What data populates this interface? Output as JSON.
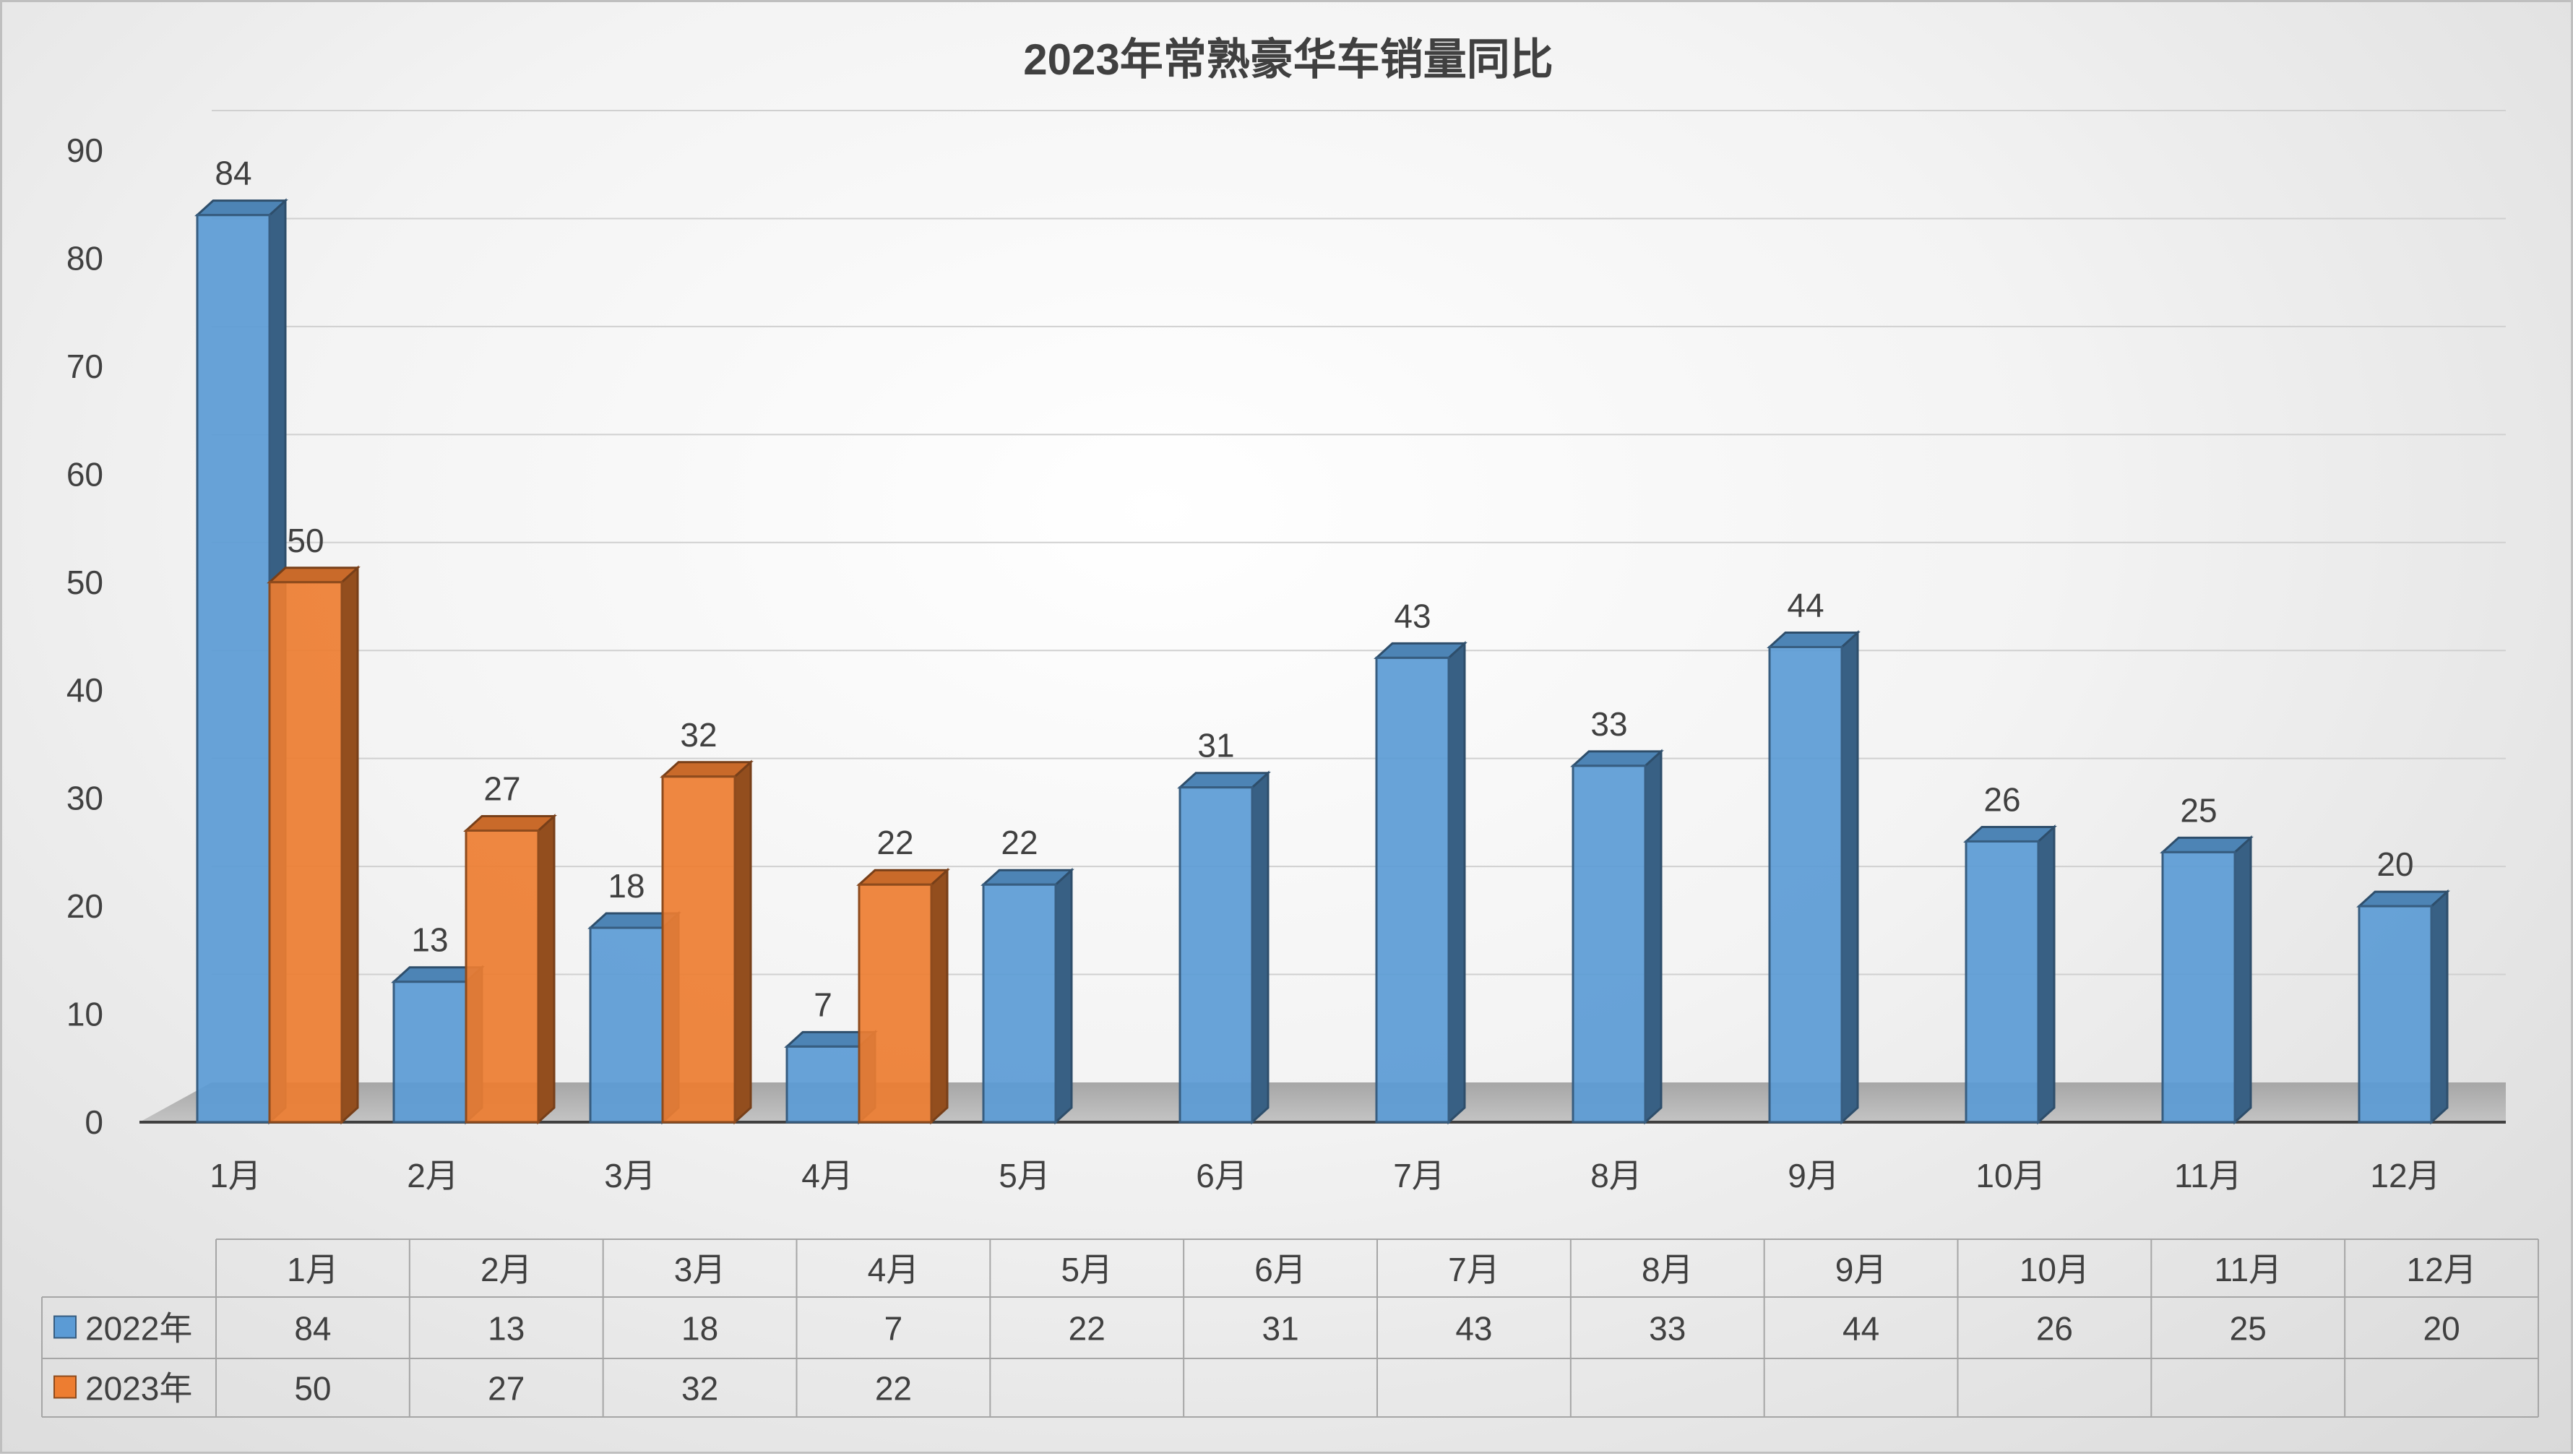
{
  "chart_data": {
    "type": "bar",
    "title": "2023年常熟豪华车销量同比",
    "categories": [
      "1月",
      "2月",
      "3月",
      "4月",
      "5月",
      "6月",
      "7月",
      "8月",
      "9月",
      "10月",
      "11月",
      "12月"
    ],
    "series": [
      {
        "name": "2022年",
        "values": [
          84,
          13,
          18,
          7,
          22,
          31,
          43,
          33,
          44,
          26,
          25,
          20
        ],
        "color": "#5b9bd5"
      },
      {
        "name": "2023年",
        "values": [
          50,
          27,
          32,
          22,
          null,
          null,
          null,
          null,
          null,
          null,
          null,
          null
        ],
        "color": "#ed7d31"
      }
    ],
    "ylim": [
      0,
      90
    ],
    "yticks": [
      0,
      10,
      20,
      30,
      40,
      50,
      60,
      70,
      80,
      90
    ],
    "grid": true,
    "legend": "data-table",
    "style": "3d-clustered-column"
  }
}
